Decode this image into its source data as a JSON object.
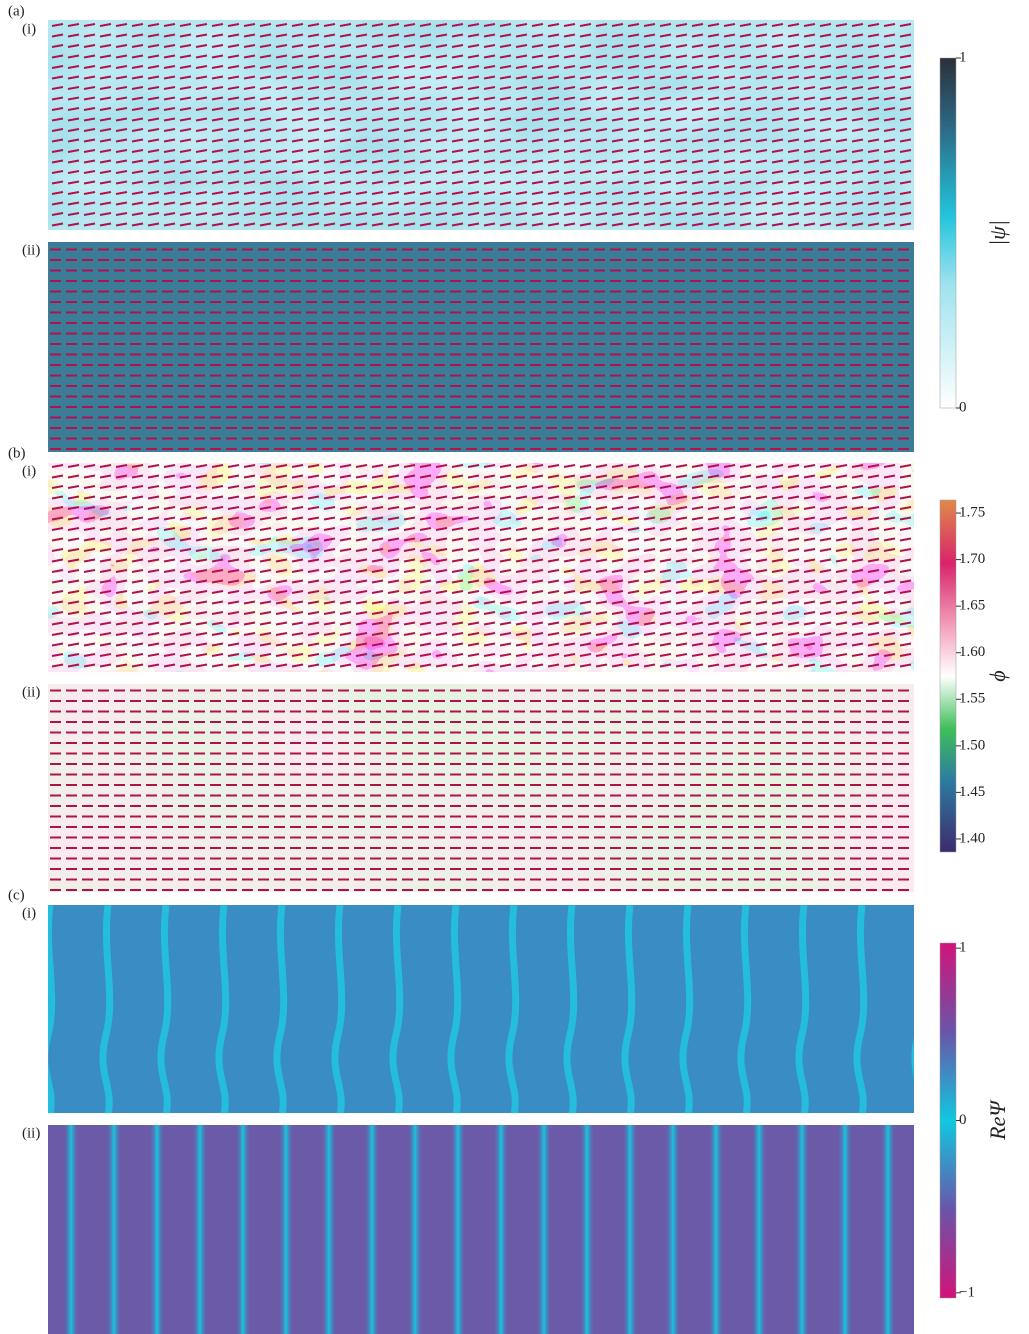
{
  "panels": [
    {
      "label": "(a)",
      "subpanels": [
        {
          "label": "(i)"
        },
        {
          "label": "(ii)"
        }
      ],
      "colorbar": {
        "label": "|ψ|",
        "lim": [
          0,
          1
        ],
        "ticks": [
          0,
          1
        ]
      }
    },
    {
      "label": "(b)",
      "subpanels": [
        {
          "label": "(i)"
        },
        {
          "label": "(ii)"
        }
      ],
      "colorbar": {
        "label": "ϕ",
        "lim": [
          1.386,
          1.764
        ],
        "ticks": [
          {
            "value": 1.4,
            "label": "1.40"
          },
          1.45,
          {
            "value": 1.5,
            "label": "1.50"
          },
          1.55,
          {
            "value": 1.6,
            "label": "1.60"
          },
          1.65,
          {
            "value": 1.7,
            "label": "1.70"
          },
          1.75
        ]
      }
    },
    {
      "label": "(c)",
      "subpanels": [
        {
          "label": "(i)"
        },
        {
          "label": "(ii)"
        }
      ],
      "colorbar": {
        "label": "ReΨ",
        "lim": [
          -1.03,
          1.03
        ],
        "ticks": [
          {
            "value": -1,
            "label": "−1"
          },
          0,
          1
        ]
      }
    }
  ]
}
